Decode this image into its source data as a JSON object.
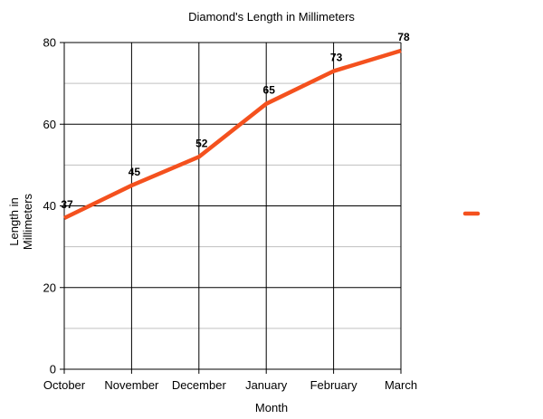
{
  "chart_data": {
    "type": "line",
    "title": "Diamond's Length in Millimeters",
    "xlabel": "Month",
    "ylabel": "Length in Millimeters",
    "ylabel_lines": [
      "Length in",
      "Millimeters"
    ],
    "categories": [
      "October",
      "November",
      "December",
      "January",
      "February",
      "March"
    ],
    "series": [
      {
        "values": [
          37,
          45,
          52,
          65,
          73,
          78
        ],
        "color": "#f4511e"
      }
    ],
    "ylim": [
      0,
      80
    ],
    "y_ticks": [
      0,
      20,
      40,
      60,
      80
    ],
    "y_minor_ticks": [
      10,
      30,
      50,
      70
    ],
    "grid": true,
    "legend": "right",
    "colors": {
      "major_grid": "#000000",
      "minor_grid": "#c0c0c0",
      "line": "#f4511e"
    }
  }
}
